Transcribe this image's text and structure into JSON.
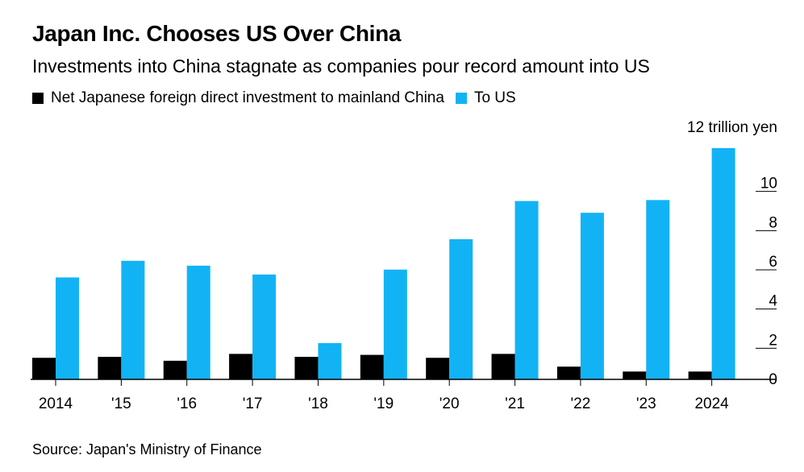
{
  "chart_data": {
    "type": "bar",
    "title": "Japan Inc. Chooses US Over China",
    "subtitle": "Investments into China stagnate as companies pour record amount into US",
    "categories": [
      "2014",
      "'15",
      "'16",
      "'17",
      "'18",
      "'19",
      "'20",
      "'21",
      "'22",
      "'23",
      "2024"
    ],
    "series": [
      {
        "name": "Net Japanese foreign direct investment to mainland China",
        "color": "#000000",
        "values": [
          1.1,
          1.15,
          0.95,
          1.3,
          1.15,
          1.25,
          1.1,
          1.3,
          0.65,
          0.4,
          0.4
        ]
      },
      {
        "name": "To US",
        "color": "#12b3f5",
        "values": [
          5.2,
          6.05,
          5.8,
          5.35,
          1.85,
          5.6,
          7.15,
          9.1,
          8.5,
          9.15,
          11.8
        ]
      }
    ],
    "ylabel": "12 trillion yen",
    "yticks": [
      0,
      2,
      4,
      6,
      8,
      10
    ],
    "ylim": [
      0,
      12
    ],
    "legend_position": "top-left",
    "source": "Source: Japan's Ministry of Finance"
  }
}
